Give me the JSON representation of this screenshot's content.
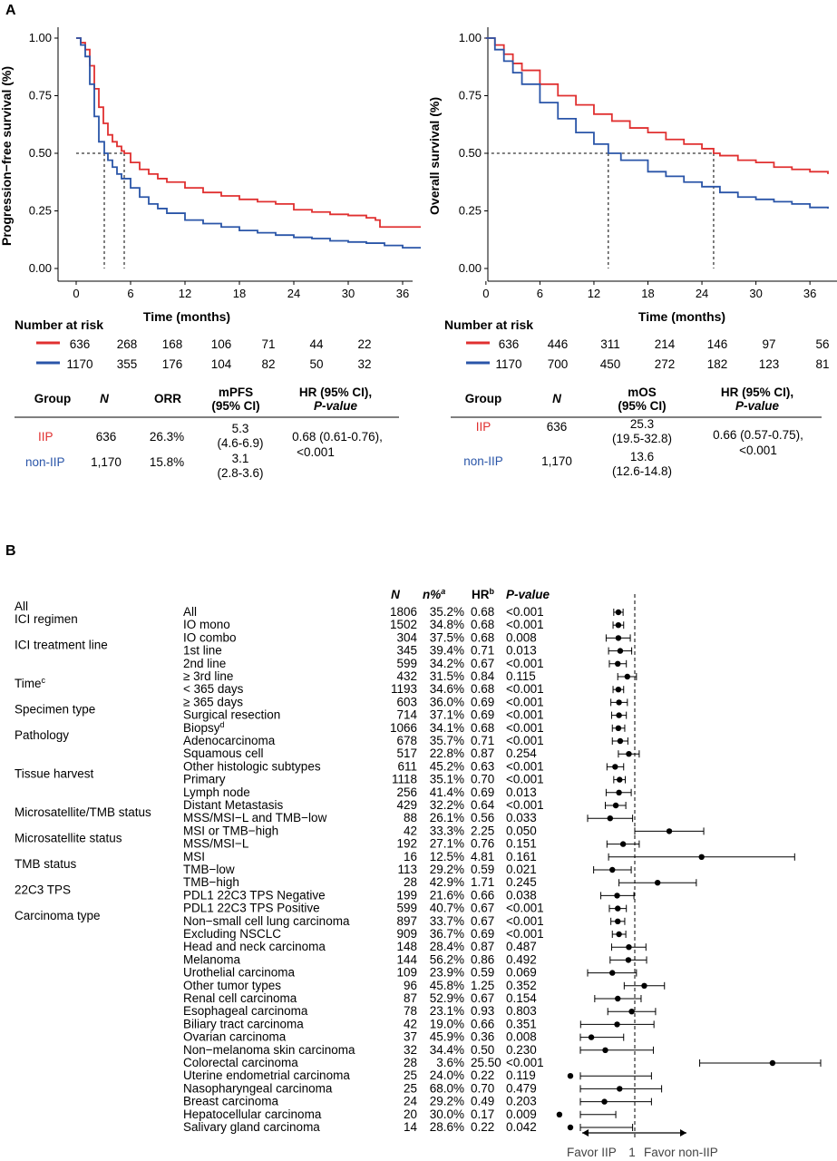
{
  "panel_a_label": "A",
  "panel_b_label": "B",
  "colors": {
    "iip": "#e03030",
    "non_iip": "#2a55a8"
  },
  "chart_data": [
    {
      "type": "line",
      "id": "pfs",
      "xlabel": "Time (months)",
      "ylabel": "Progression−free survival (%)",
      "xlim": [
        -2,
        38
      ],
      "ylim": [
        0,
        1
      ],
      "x_ticks": [
        "0",
        "6",
        "12",
        "18",
        "24",
        "30",
        "36"
      ],
      "y_ticks": [
        "0.00",
        "0.25",
        "0.50",
        "0.75",
        "1.00"
      ],
      "medians": [
        3.1,
        5.3
      ],
      "series": [
        {
          "name": "IIP",
          "color": "#e03030",
          "x": [
            0,
            0.5,
            1,
            1.5,
            2,
            2.5,
            3,
            3.5,
            4,
            4.5,
            5,
            5.3,
            6,
            7,
            8,
            9,
            10,
            12,
            14,
            16,
            18,
            20,
            22,
            24,
            26,
            28,
            30,
            32,
            33,
            33.5,
            36,
            38
          ],
          "y": [
            1.0,
            0.98,
            0.95,
            0.88,
            0.78,
            0.7,
            0.63,
            0.58,
            0.55,
            0.53,
            0.51,
            0.5,
            0.46,
            0.43,
            0.41,
            0.39,
            0.375,
            0.35,
            0.33,
            0.315,
            0.3,
            0.29,
            0.28,
            0.255,
            0.245,
            0.235,
            0.23,
            0.22,
            0.21,
            0.18,
            0.18,
            0.18
          ]
        },
        {
          "name": "non-IIP",
          "color": "#2a55a8",
          "x": [
            0,
            0.5,
            1,
            1.5,
            2,
            2.5,
            3.1,
            3.5,
            4,
            4.5,
            5,
            6,
            7,
            8,
            9,
            10,
            12,
            14,
            16,
            18,
            20,
            22,
            24,
            26,
            28,
            30,
            32,
            34,
            36,
            38
          ],
          "y": [
            1.0,
            0.97,
            0.92,
            0.8,
            0.66,
            0.55,
            0.5,
            0.47,
            0.44,
            0.41,
            0.39,
            0.35,
            0.31,
            0.28,
            0.26,
            0.24,
            0.21,
            0.195,
            0.18,
            0.165,
            0.155,
            0.145,
            0.135,
            0.13,
            0.12,
            0.115,
            0.11,
            0.1,
            0.09,
            0.09
          ]
        }
      ]
    },
    {
      "type": "line",
      "id": "os",
      "xlabel": "Time (months)",
      "ylabel": "Overall survival (%)",
      "xlim": [
        -2,
        38
      ],
      "ylim": [
        0,
        1
      ],
      "x_ticks": [
        "0",
        "6",
        "12",
        "18",
        "24",
        "30",
        "36"
      ],
      "y_ticks": [
        "0.00",
        "0.25",
        "0.50",
        "0.75",
        "1.00"
      ],
      "medians": [
        13.6,
        25.3
      ],
      "series": [
        {
          "name": "IIP",
          "color": "#e03030",
          "x": [
            0,
            1,
            2,
            3,
            4,
            6,
            8,
            10,
            12,
            14,
            16,
            18,
            20,
            22,
            24,
            25.3,
            26,
            28,
            30,
            32,
            34,
            36,
            38
          ],
          "y": [
            1.0,
            0.97,
            0.93,
            0.89,
            0.86,
            0.8,
            0.75,
            0.71,
            0.67,
            0.64,
            0.61,
            0.59,
            0.56,
            0.54,
            0.52,
            0.5,
            0.49,
            0.47,
            0.46,
            0.44,
            0.43,
            0.42,
            0.41
          ]
        },
        {
          "name": "non-IIP",
          "color": "#2a55a8",
          "x": [
            0,
            1,
            2,
            3,
            4,
            6,
            8,
            10,
            12,
            13.6,
            15,
            18,
            20,
            22,
            24,
            26,
            28,
            30,
            32,
            34,
            36,
            38
          ],
          "y": [
            1.0,
            0.95,
            0.9,
            0.85,
            0.8,
            0.72,
            0.65,
            0.59,
            0.54,
            0.5,
            0.47,
            0.42,
            0.4,
            0.375,
            0.355,
            0.33,
            0.31,
            0.3,
            0.29,
            0.28,
            0.265,
            0.26
          ]
        }
      ]
    },
    {
      "type": "forest",
      "id": "subgroup",
      "x_reference": 1,
      "rows": [
        {
          "group": "All",
          "label": "All",
          "N": "1806",
          "pct": "35.2%",
          "hr": "0.68",
          "p": "<0.001",
          "hr_val": 0.68,
          "lo": 0.61,
          "hi": 0.76
        },
        {
          "group": "ICI regimen",
          "label": "IO mono",
          "N": "1502",
          "pct": "34.8%",
          "hr": "0.68",
          "p": "<0.001",
          "hr_val": 0.68,
          "lo": 0.6,
          "hi": 0.77
        },
        {
          "group": "",
          "label": "IO combo",
          "N": "304",
          "pct": "37.5%",
          "hr": "0.68",
          "p": "0.008",
          "hr_val": 0.68,
          "lo": 0.51,
          "hi": 0.9
        },
        {
          "group": "ICI treatment line",
          "label": "1st line",
          "N": "345",
          "pct": "39.4%",
          "hr": "0.71",
          "p": "0.013",
          "hr_val": 0.71,
          "lo": 0.54,
          "hi": 0.93
        },
        {
          "group": "",
          "label": "2nd line",
          "N": "599",
          "pct": "34.2%",
          "hr": "0.67",
          "p": "<0.001",
          "hr_val": 0.67,
          "lo": 0.55,
          "hi": 0.82
        },
        {
          "group": "",
          "label": "≥ 3rd line",
          "N": "432",
          "pct": "31.5%",
          "hr": "0.84",
          "p": "0.115",
          "hr_val": 0.84,
          "lo": 0.67,
          "hi": 1.04
        },
        {
          "group": "Time",
          "label": "< 365 days",
          "N": "1193",
          "pct": "34.6%",
          "hr": "0.68",
          "p": "<0.001",
          "hr_val": 0.68,
          "lo": 0.6,
          "hi": 0.77
        },
        {
          "group": "",
          "label": "≥ 365 days",
          "N": "603",
          "pct": "36.0%",
          "hr": "0.69",
          "p": "<0.001",
          "hr_val": 0.69,
          "lo": 0.57,
          "hi": 0.84
        },
        {
          "group": "Specimen type",
          "label": "Surgical resection",
          "N": "714",
          "pct": "37.1%",
          "hr": "0.69",
          "p": "<0.001",
          "hr_val": 0.69,
          "lo": 0.58,
          "hi": 0.82
        },
        {
          "group": "",
          "label": "Biopsy",
          "N": "1066",
          "pct": "34.1%",
          "hr": "0.68",
          "p": "<0.001",
          "hr_val": 0.68,
          "lo": 0.59,
          "hi": 0.79
        },
        {
          "group": "Pathology",
          "label": "Adenocarcinoma",
          "N": "678",
          "pct": "35.7%",
          "hr": "0.71",
          "p": "<0.001",
          "hr_val": 0.71,
          "lo": 0.59,
          "hi": 0.85
        },
        {
          "group": "",
          "label": "Squamous cell",
          "N": "517",
          "pct": "22.8%",
          "hr": "0.87",
          "p": "0.254",
          "hr_val": 0.87,
          "lo": 0.68,
          "hi": 1.11
        },
        {
          "group": "",
          "label": "Other histologic subtypes",
          "N": "611",
          "pct": "45.2%",
          "hr": "0.63",
          "p": "<0.001",
          "hr_val": 0.63,
          "lo": 0.52,
          "hi": 0.77
        },
        {
          "group": "Tissue harvest",
          "label": "Primary",
          "N": "1118",
          "pct": "35.1%",
          "hr": "0.70",
          "p": "<0.001",
          "hr_val": 0.7,
          "lo": 0.61,
          "hi": 0.8
        },
        {
          "group": "",
          "label": "Lymph node",
          "N": "256",
          "pct": "41.4%",
          "hr": "0.69",
          "p": "0.013",
          "hr_val": 0.69,
          "lo": 0.51,
          "hi": 0.92
        },
        {
          "group": "",
          "label": "Distant Metastasis",
          "N": "429",
          "pct": "32.2%",
          "hr": "0.64",
          "p": "<0.001",
          "hr_val": 0.64,
          "lo": 0.5,
          "hi": 0.81
        },
        {
          "group": "Microsatellite/TMB status",
          "label": "MSS/MSI−L and TMB−low",
          "N": "88",
          "pct": "26.1%",
          "hr": "0.56",
          "p": "0.033",
          "hr_val": 0.56,
          "lo": 0.33,
          "hi": 0.95
        },
        {
          "group": "",
          "label": "MSI or TMB−high",
          "N": "42",
          "pct": "33.3%",
          "hr": "2.25",
          "p": "0.050",
          "hr_val": 2.25,
          "lo": 1.0,
          "hi": 5.06
        },
        {
          "group": "Microsatellite status",
          "label": "MSS/MSI−L",
          "N": "192",
          "pct": "27.1%",
          "hr": "0.76",
          "p": "0.151",
          "hr_val": 0.76,
          "lo": 0.52,
          "hi": 1.11
        },
        {
          "group": "",
          "label": "MSI",
          "N": "16",
          "pct": "12.5%",
          "hr": "4.81",
          "p": "0.161",
          "hr_val": 4.81,
          "lo": 0.54,
          "hi": 42.9
        },
        {
          "group": "TMB status",
          "label": "TMB−low",
          "N": "113",
          "pct": "29.2%",
          "hr": "0.59",
          "p": "0.021",
          "hr_val": 0.59,
          "lo": 0.38,
          "hi": 0.92
        },
        {
          "group": "",
          "label": "TMB−high",
          "N": "28",
          "pct": "42.9%",
          "hr": "1.71",
          "p": "0.245",
          "hr_val": 1.71,
          "lo": 0.69,
          "hi": 4.25
        },
        {
          "group": "22C3 TPS",
          "label": "PDL1 22C3 TPS Negative",
          "N": "199",
          "pct": "21.6%",
          "hr": "0.66",
          "p": "0.038",
          "hr_val": 0.66,
          "lo": 0.45,
          "hi": 0.98
        },
        {
          "group": "",
          "label": "PDL1 22C3 TPS Positive",
          "N": "599",
          "pct": "40.7%",
          "hr": "0.67",
          "p": "<0.001",
          "hr_val": 0.67,
          "lo": 0.55,
          "hi": 0.82
        },
        {
          "group": "Carcinoma type",
          "label": "Non−small cell lung carcinoma",
          "N": "897",
          "pct": "33.7%",
          "hr": "0.67",
          "p": "<0.001",
          "hr_val": 0.67,
          "lo": 0.57,
          "hi": 0.79
        },
        {
          "group": "",
          "label": "Excluding NSCLC",
          "N": "909",
          "pct": "36.7%",
          "hr": "0.69",
          "p": "<0.001",
          "hr_val": 0.69,
          "lo": 0.59,
          "hi": 0.81
        },
        {
          "group": "",
          "label": "Head and neck carcinoma",
          "N": "148",
          "pct": "28.4%",
          "hr": "0.87",
          "p": "0.487",
          "hr_val": 0.87,
          "lo": 0.58,
          "hi": 1.3
        },
        {
          "group": "",
          "label": "Melanoma",
          "N": "144",
          "pct": "56.2%",
          "hr": "0.86",
          "p": "0.492",
          "hr_val": 0.86,
          "lo": 0.56,
          "hi": 1.32
        },
        {
          "group": "",
          "label": "Urothelial carcinoma",
          "N": "109",
          "pct": "23.9%",
          "hr": "0.59",
          "p": "0.069",
          "hr_val": 0.59,
          "lo": 0.33,
          "hi": 1.04
        },
        {
          "group": "",
          "label": "Other tumor types",
          "N": "96",
          "pct": "45.8%",
          "hr": "1.25",
          "p": "0.352",
          "hr_val": 1.25,
          "lo": 0.78,
          "hi": 2.01
        },
        {
          "group": "",
          "label": "Renal cell carcinoma",
          "N": "87",
          "pct": "52.9%",
          "hr": "0.67",
          "p": "0.154",
          "hr_val": 0.67,
          "lo": 0.39,
          "hi": 1.16
        },
        {
          "group": "",
          "label": "Esophageal carcinoma",
          "N": "78",
          "pct": "23.1%",
          "hr": "0.93",
          "p": "0.803",
          "hr_val": 0.93,
          "lo": 0.53,
          "hi": 1.63
        },
        {
          "group": "",
          "label": "Biliary tract carcinoma",
          "N": "42",
          "pct": "19.0%",
          "hr": "0.66",
          "p": "0.351",
          "hr_val": 0.66,
          "lo": 0.28,
          "hi": 1.57
        },
        {
          "group": "",
          "label": "Ovarian carcinoma",
          "N": "37",
          "pct": "45.9%",
          "hr": "0.36",
          "p": "0.008",
          "hr_val": 0.36,
          "lo": 0.17,
          "hi": 0.77
        },
        {
          "group": "",
          "label": "Non−melanoma skin carcinoma",
          "N": "32",
          "pct": "34.4%",
          "hr": "0.50",
          "p": "0.230",
          "hr_val": 0.5,
          "lo": 0.16,
          "hi": 1.55
        },
        {
          "group": "",
          "label": "Colorectal carcinoma",
          "N": "28",
          "pct": "3.6%",
          "hr": "25.50",
          "p": "<0.001",
          "hr_val": 25.5,
          "lo": 4.6,
          "hi": 141
        },
        {
          "group": "",
          "label": "Uterine endometrial carcinoma",
          "N": "25",
          "pct": "24.0%",
          "hr": "0.22",
          "p": "0.119",
          "hr_val": 0.22,
          "lo": 0.03,
          "hi": 1.48
        },
        {
          "group": "",
          "label": "Nasopharyngeal carcinoma",
          "N": "25",
          "pct": "68.0%",
          "hr": "0.70",
          "p": "0.479",
          "hr_val": 0.7,
          "lo": 0.26,
          "hi": 1.88
        },
        {
          "group": "",
          "label": "Breast carcinoma",
          "N": "24",
          "pct": "29.2%",
          "hr": "0.49",
          "p": "0.203",
          "hr_val": 0.49,
          "lo": 0.16,
          "hi": 1.48
        },
        {
          "group": "",
          "label": "Hepatocellular carcinoma",
          "N": "20",
          "pct": "30.0%",
          "hr": "0.17",
          "p": "0.009",
          "hr_val": 0.17,
          "lo": 0.05,
          "hi": 0.64
        },
        {
          "group": "",
          "label": "Salivary gland carcinoma",
          "N": "14",
          "pct": "28.6%",
          "hr": "0.22",
          "p": "0.042",
          "hr_val": 0.22,
          "lo": 0.05,
          "hi": 0.95
        }
      ]
    }
  ],
  "pfs_risk": {
    "title": "Number at risk",
    "iip": [
      "636",
      "268",
      "168",
      "106",
      "71",
      "44",
      "22"
    ],
    "non_iip": [
      "1170",
      "355",
      "176",
      "104",
      "82",
      "50",
      "32"
    ]
  },
  "os_risk": {
    "title": "Number at risk",
    "iip": [
      "636",
      "446",
      "311",
      "214",
      "146",
      "97",
      "56"
    ],
    "non_iip": [
      "1170",
      "700",
      "450",
      "272",
      "182",
      "123",
      "81"
    ]
  },
  "pfs_table": {
    "h_group": "Group",
    "h_n": "N",
    "h_orr": "ORR",
    "h_mpfs_1": "mPFS",
    "h_mpfs_2": "(95% CI)",
    "h_hr_1": "HR (95% CI),",
    "h_hr_2": "P-value",
    "iip_group": "IIP",
    "iip_n": "636",
    "iip_orr": "26.3%",
    "iip_m": "5.3",
    "iip_ci": "(4.6-6.9)",
    "non_group": "non-IIP",
    "non_n": "1,170",
    "non_orr": "15.8%",
    "non_m": "3.1",
    "non_ci": "(2.8-3.6)",
    "hr_1": "0.68 (0.61-0.76),",
    "hr_2": "<0.001"
  },
  "os_table": {
    "h_group": "Group",
    "h_n": "N",
    "h_mos_1": "mOS",
    "h_mos_2": "(95% CI)",
    "h_hr_1": "HR (95% CI),",
    "h_hr_2": "P-value",
    "iip_group": "IIP",
    "iip_n": "636",
    "iip_m": "25.3",
    "iip_ci": "(19.5-32.8)",
    "non_group": "non-IIP",
    "non_n": "1,170",
    "non_m": "13.6",
    "non_ci": "(12.6-14.8)",
    "hr_1": "0.66 (0.57-0.75),",
    "hr_2": "<0.001"
  },
  "forest_headers": {
    "n": "N",
    "pct": "n%",
    "pct_sup": "a",
    "hr": "HR",
    "hr_sup": "b",
    "p": "P-value"
  },
  "forest_superscripts": {
    "time": "c",
    "biopsy": "d"
  },
  "forest_footer": {
    "left": "Favor IIP",
    "mid": "1",
    "right": "Favor non-IIP"
  }
}
